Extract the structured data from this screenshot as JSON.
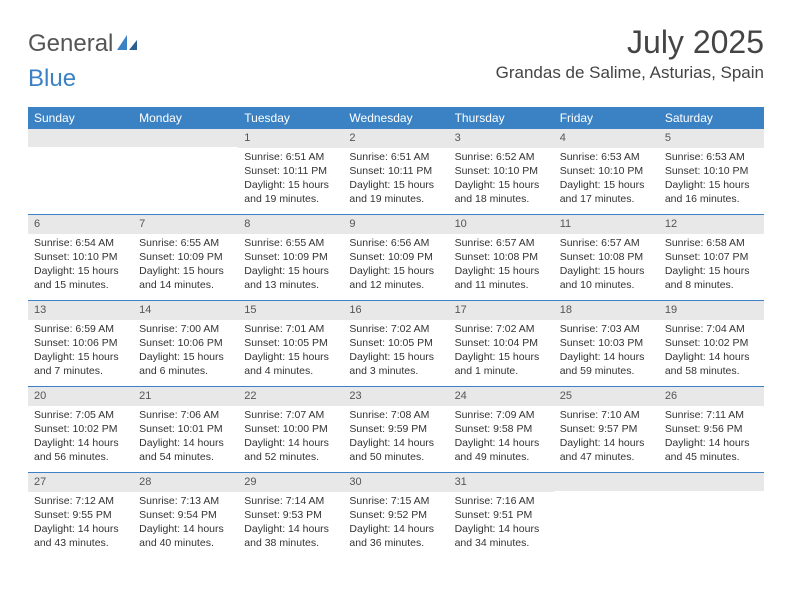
{
  "logo": {
    "part1": "General",
    "part2": "Blue"
  },
  "title": "July 2025",
  "location": "Grandas de Salime, Asturias, Spain",
  "colors": {
    "header_bg": "#3b82c4",
    "daynum_bg": "#e8e8e8",
    "text": "#333333",
    "border": "#3b82c4"
  },
  "weekdays": [
    "Sunday",
    "Monday",
    "Tuesday",
    "Wednesday",
    "Thursday",
    "Friday",
    "Saturday"
  ],
  "weeks": [
    [
      {
        "n": "",
        "sunrise": "",
        "sunset": "",
        "daylight": ""
      },
      {
        "n": "",
        "sunrise": "",
        "sunset": "",
        "daylight": ""
      },
      {
        "n": "1",
        "sunrise": "Sunrise: 6:51 AM",
        "sunset": "Sunset: 10:11 PM",
        "daylight": "Daylight: 15 hours and 19 minutes."
      },
      {
        "n": "2",
        "sunrise": "Sunrise: 6:51 AM",
        "sunset": "Sunset: 10:11 PM",
        "daylight": "Daylight: 15 hours and 19 minutes."
      },
      {
        "n": "3",
        "sunrise": "Sunrise: 6:52 AM",
        "sunset": "Sunset: 10:10 PM",
        "daylight": "Daylight: 15 hours and 18 minutes."
      },
      {
        "n": "4",
        "sunrise": "Sunrise: 6:53 AM",
        "sunset": "Sunset: 10:10 PM",
        "daylight": "Daylight: 15 hours and 17 minutes."
      },
      {
        "n": "5",
        "sunrise": "Sunrise: 6:53 AM",
        "sunset": "Sunset: 10:10 PM",
        "daylight": "Daylight: 15 hours and 16 minutes."
      }
    ],
    [
      {
        "n": "6",
        "sunrise": "Sunrise: 6:54 AM",
        "sunset": "Sunset: 10:10 PM",
        "daylight": "Daylight: 15 hours and 15 minutes."
      },
      {
        "n": "7",
        "sunrise": "Sunrise: 6:55 AM",
        "sunset": "Sunset: 10:09 PM",
        "daylight": "Daylight: 15 hours and 14 minutes."
      },
      {
        "n": "8",
        "sunrise": "Sunrise: 6:55 AM",
        "sunset": "Sunset: 10:09 PM",
        "daylight": "Daylight: 15 hours and 13 minutes."
      },
      {
        "n": "9",
        "sunrise": "Sunrise: 6:56 AM",
        "sunset": "Sunset: 10:09 PM",
        "daylight": "Daylight: 15 hours and 12 minutes."
      },
      {
        "n": "10",
        "sunrise": "Sunrise: 6:57 AM",
        "sunset": "Sunset: 10:08 PM",
        "daylight": "Daylight: 15 hours and 11 minutes."
      },
      {
        "n": "11",
        "sunrise": "Sunrise: 6:57 AM",
        "sunset": "Sunset: 10:08 PM",
        "daylight": "Daylight: 15 hours and 10 minutes."
      },
      {
        "n": "12",
        "sunrise": "Sunrise: 6:58 AM",
        "sunset": "Sunset: 10:07 PM",
        "daylight": "Daylight: 15 hours and 8 minutes."
      }
    ],
    [
      {
        "n": "13",
        "sunrise": "Sunrise: 6:59 AM",
        "sunset": "Sunset: 10:06 PM",
        "daylight": "Daylight: 15 hours and 7 minutes."
      },
      {
        "n": "14",
        "sunrise": "Sunrise: 7:00 AM",
        "sunset": "Sunset: 10:06 PM",
        "daylight": "Daylight: 15 hours and 6 minutes."
      },
      {
        "n": "15",
        "sunrise": "Sunrise: 7:01 AM",
        "sunset": "Sunset: 10:05 PM",
        "daylight": "Daylight: 15 hours and 4 minutes."
      },
      {
        "n": "16",
        "sunrise": "Sunrise: 7:02 AM",
        "sunset": "Sunset: 10:05 PM",
        "daylight": "Daylight: 15 hours and 3 minutes."
      },
      {
        "n": "17",
        "sunrise": "Sunrise: 7:02 AM",
        "sunset": "Sunset: 10:04 PM",
        "daylight": "Daylight: 15 hours and 1 minute."
      },
      {
        "n": "18",
        "sunrise": "Sunrise: 7:03 AM",
        "sunset": "Sunset: 10:03 PM",
        "daylight": "Daylight: 14 hours and 59 minutes."
      },
      {
        "n": "19",
        "sunrise": "Sunrise: 7:04 AM",
        "sunset": "Sunset: 10:02 PM",
        "daylight": "Daylight: 14 hours and 58 minutes."
      }
    ],
    [
      {
        "n": "20",
        "sunrise": "Sunrise: 7:05 AM",
        "sunset": "Sunset: 10:02 PM",
        "daylight": "Daylight: 14 hours and 56 minutes."
      },
      {
        "n": "21",
        "sunrise": "Sunrise: 7:06 AM",
        "sunset": "Sunset: 10:01 PM",
        "daylight": "Daylight: 14 hours and 54 minutes."
      },
      {
        "n": "22",
        "sunrise": "Sunrise: 7:07 AM",
        "sunset": "Sunset: 10:00 PM",
        "daylight": "Daylight: 14 hours and 52 minutes."
      },
      {
        "n": "23",
        "sunrise": "Sunrise: 7:08 AM",
        "sunset": "Sunset: 9:59 PM",
        "daylight": "Daylight: 14 hours and 50 minutes."
      },
      {
        "n": "24",
        "sunrise": "Sunrise: 7:09 AM",
        "sunset": "Sunset: 9:58 PM",
        "daylight": "Daylight: 14 hours and 49 minutes."
      },
      {
        "n": "25",
        "sunrise": "Sunrise: 7:10 AM",
        "sunset": "Sunset: 9:57 PM",
        "daylight": "Daylight: 14 hours and 47 minutes."
      },
      {
        "n": "26",
        "sunrise": "Sunrise: 7:11 AM",
        "sunset": "Sunset: 9:56 PM",
        "daylight": "Daylight: 14 hours and 45 minutes."
      }
    ],
    [
      {
        "n": "27",
        "sunrise": "Sunrise: 7:12 AM",
        "sunset": "Sunset: 9:55 PM",
        "daylight": "Daylight: 14 hours and 43 minutes."
      },
      {
        "n": "28",
        "sunrise": "Sunrise: 7:13 AM",
        "sunset": "Sunset: 9:54 PM",
        "daylight": "Daylight: 14 hours and 40 minutes."
      },
      {
        "n": "29",
        "sunrise": "Sunrise: 7:14 AM",
        "sunset": "Sunset: 9:53 PM",
        "daylight": "Daylight: 14 hours and 38 minutes."
      },
      {
        "n": "30",
        "sunrise": "Sunrise: 7:15 AM",
        "sunset": "Sunset: 9:52 PM",
        "daylight": "Daylight: 14 hours and 36 minutes."
      },
      {
        "n": "31",
        "sunrise": "Sunrise: 7:16 AM",
        "sunset": "Sunset: 9:51 PM",
        "daylight": "Daylight: 14 hours and 34 minutes."
      },
      {
        "n": "",
        "sunrise": "",
        "sunset": "",
        "daylight": ""
      },
      {
        "n": "",
        "sunrise": "",
        "sunset": "",
        "daylight": ""
      }
    ]
  ]
}
